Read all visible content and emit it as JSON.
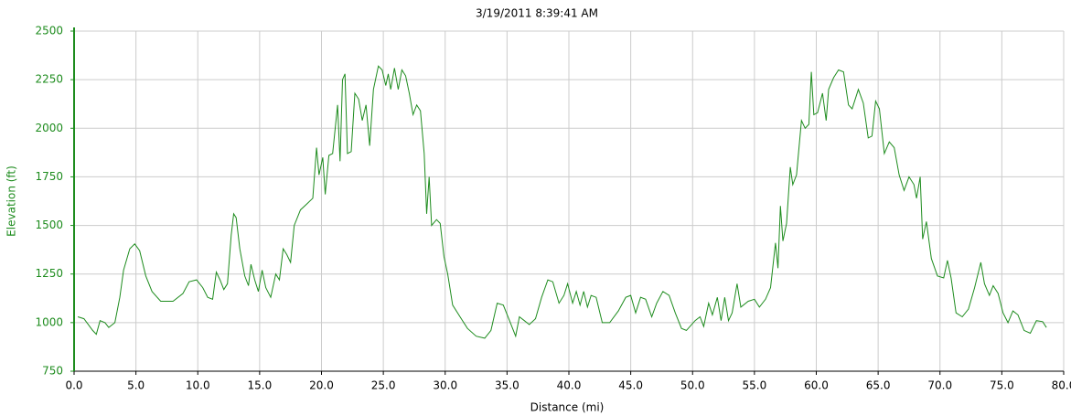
{
  "chart_data": {
    "type": "line",
    "title": "3/19/2011 8:39:41 AM",
    "xlabel": "Distance (mi)",
    "ylabel": "Elevation (ft)",
    "xlim": [
      0,
      80
    ],
    "ylim": [
      750,
      2500
    ],
    "xticks": [
      {
        "value": 0,
        "label": "0.0"
      },
      {
        "value": 5,
        "label": "5.0"
      },
      {
        "value": 10,
        "label": "10.0"
      },
      {
        "value": 15,
        "label": "15.0"
      },
      {
        "value": 20,
        "label": "20.0"
      },
      {
        "value": 25,
        "label": "25.0"
      },
      {
        "value": 30,
        "label": "30.0"
      },
      {
        "value": 35,
        "label": "35.0"
      },
      {
        "value": 40,
        "label": "40.0"
      },
      {
        "value": 45,
        "label": "45.0"
      },
      {
        "value": 50,
        "label": "50.0"
      },
      {
        "value": 55,
        "label": "55.0"
      },
      {
        "value": 60,
        "label": "60.0"
      },
      {
        "value": 65,
        "label": "65.0"
      },
      {
        "value": 70,
        "label": "70.0"
      },
      {
        "value": 75,
        "label": "75.0"
      },
      {
        "value": 80,
        "label": "80.0"
      }
    ],
    "yticks": [
      750,
      1000,
      1250,
      1500,
      1750,
      2000,
      2250,
      2500
    ],
    "grid": true,
    "color": "#1e8c1e",
    "axis_color": "#1e8c1e",
    "x": [
      0.3,
      0.8,
      1.5,
      1.8,
      2.1,
      2.5,
      2.8,
      3.3,
      3.7,
      4.0,
      4.5,
      4.9,
      5.3,
      5.8,
      6.3,
      7.0,
      8.0,
      8.8,
      9.3,
      9.9,
      10.4,
      10.8,
      11.2,
      11.5,
      11.8,
      12.1,
      12.4,
      12.7,
      12.9,
      13.1,
      13.4,
      13.8,
      14.1,
      14.3,
      14.6,
      14.9,
      15.2,
      15.5,
      15.9,
      16.3,
      16.6,
      16.9,
      17.2,
      17.5,
      17.8,
      18.3,
      18.8,
      19.3,
      19.6,
      19.8,
      20.1,
      20.3,
      20.6,
      20.9,
      21.3,
      21.5,
      21.7,
      21.9,
      22.1,
      22.4,
      22.7,
      23.0,
      23.3,
      23.6,
      23.9,
      24.2,
      24.6,
      24.9,
      25.2,
      25.4,
      25.6,
      25.9,
      26.2,
      26.5,
      26.8,
      27.1,
      27.4,
      27.7,
      28.0,
      28.3,
      28.5,
      28.7,
      28.9,
      29.3,
      29.6,
      29.9,
      30.2,
      30.6,
      31.2,
      31.8,
      32.5,
      33.2,
      33.7,
      34.2,
      34.7,
      35.2,
      35.7,
      36.0,
      36.4,
      36.8,
      37.3,
      37.8,
      38.3,
      38.7,
      39.2,
      39.6,
      39.9,
      40.3,
      40.6,
      40.9,
      41.2,
      41.5,
      41.8,
      42.2,
      42.7,
      43.3,
      44.0,
      44.6,
      45.0,
      45.4,
      45.8,
      46.2,
      46.7,
      47.1,
      47.6,
      48.1,
      48.6,
      49.1,
      49.5,
      50.2,
      50.6,
      50.9,
      51.3,
      51.6,
      52.0,
      52.3,
      52.6,
      52.9,
      53.2,
      53.6,
      53.9,
      54.5,
      55.0,
      55.4,
      55.9,
      56.3,
      56.7,
      56.9,
      57.1,
      57.3,
      57.6,
      57.9,
      58.1,
      58.4,
      58.8,
      59.1,
      59.4,
      59.6,
      59.8,
      60.1,
      60.5,
      60.8,
      61.0,
      61.4,
      61.8,
      62.2,
      62.6,
      62.9,
      63.4,
      63.8,
      64.2,
      64.5,
      64.8,
      65.1,
      65.5,
      65.9,
      66.3,
      66.7,
      67.1,
      67.5,
      67.9,
      68.1,
      68.4,
      68.6,
      68.9,
      69.3,
      69.8,
      70.3,
      70.6,
      70.9,
      71.3,
      71.8,
      72.3,
      72.8,
      73.3,
      73.6,
      74.0,
      74.3,
      74.7,
      75.1,
      75.5,
      75.9,
      76.3,
      76.8,
      77.3,
      77.8,
      78.3,
      78.6
    ],
    "values": [
      1030,
      1020,
      960,
      940,
      1010,
      1000,
      975,
      1000,
      1130,
      1270,
      1380,
      1405,
      1370,
      1240,
      1160,
      1110,
      1110,
      1150,
      1210,
      1220,
      1180,
      1130,
      1120,
      1260,
      1220,
      1170,
      1200,
      1450,
      1560,
      1540,
      1380,
      1240,
      1190,
      1300,
      1220,
      1160,
      1270,
      1180,
      1130,
      1250,
      1220,
      1380,
      1350,
      1310,
      1500,
      1580,
      1610,
      1640,
      1900,
      1760,
      1850,
      1660,
      1860,
      1870,
      2120,
      1830,
      2250,
      2280,
      1870,
      1880,
      2180,
      2150,
      2040,
      2120,
      1910,
      2200,
      2320,
      2300,
      2220,
      2280,
      2200,
      2310,
      2200,
      2300,
      2270,
      2180,
      2070,
      2120,
      2090,
      1870,
      1560,
      1750,
      1500,
      1530,
      1510,
      1340,
      1250,
      1090,
      1030,
      970,
      930,
      920,
      960,
      1100,
      1090,
      1010,
      930,
      1030,
      1010,
      990,
      1020,
      1130,
      1220,
      1210,
      1100,
      1140,
      1200,
      1100,
      1160,
      1090,
      1160,
      1080,
      1140,
      1130,
      1000,
      1000,
      1060,
      1130,
      1140,
      1050,
      1130,
      1120,
      1030,
      1100,
      1160,
      1140,
      1050,
      970,
      960,
      1010,
      1030,
      980,
      1100,
      1040,
      1130,
      1010,
      1130,
      1010,
      1050,
      1200,
      1080,
      1110,
      1120,
      1080,
      1120,
      1180,
      1410,
      1280,
      1600,
      1420,
      1510,
      1800,
      1710,
      1760,
      2040,
      2000,
      2020,
      2290,
      2070,
      2080,
      2180,
      2040,
      2200,
      2260,
      2300,
      2290,
      2120,
      2100,
      2200,
      2130,
      1950,
      1960,
      2140,
      2100,
      1870,
      1930,
      1900,
      1760,
      1680,
      1750,
      1710,
      1640,
      1750,
      1430,
      1520,
      1330,
      1240,
      1230,
      1320,
      1230,
      1050,
      1030,
      1070,
      1180,
      1310,
      1200,
      1140,
      1190,
      1150,
      1050,
      1000,
      1060,
      1040,
      960,
      945,
      1010,
      1005,
      975
    ]
  }
}
